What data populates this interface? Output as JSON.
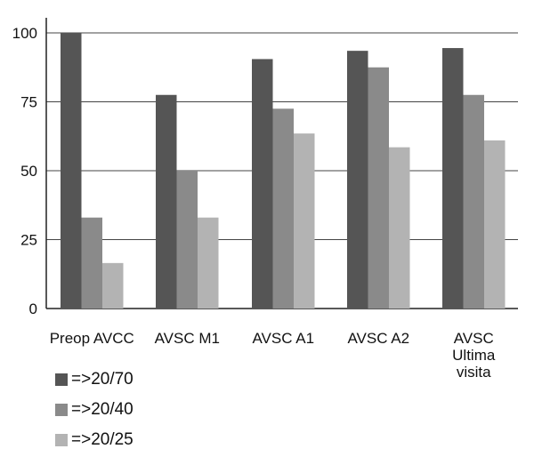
{
  "chart_data": {
    "type": "bar",
    "title": "",
    "xlabel": "",
    "ylabel": "",
    "ylim": [
      0,
      100
    ],
    "yticks": [
      "0",
      "25",
      "50",
      "75",
      "100"
    ],
    "grid": true,
    "legend_position": "bottom-left",
    "categories": [
      [
        "Preop AVCC"
      ],
      [
        "AVSC M1"
      ],
      [
        "AVSC A1"
      ],
      [
        "AVSC A2"
      ],
      [
        "AVSC",
        "Ultima",
        "visita"
      ]
    ],
    "series": [
      {
        "name": "=>20/70",
        "color": "#555555",
        "values": [
          100,
          77.5,
          90.5,
          93.5,
          94.5
        ]
      },
      {
        "name": "=>20/40",
        "color": "#8a8a8a",
        "values": [
          33,
          50,
          72.5,
          87.5,
          77.5
        ]
      },
      {
        "name": "=>20/25",
        "color": "#b3b3b3",
        "values": [
          16.5,
          33,
          63.5,
          58.5,
          61
        ]
      }
    ]
  }
}
